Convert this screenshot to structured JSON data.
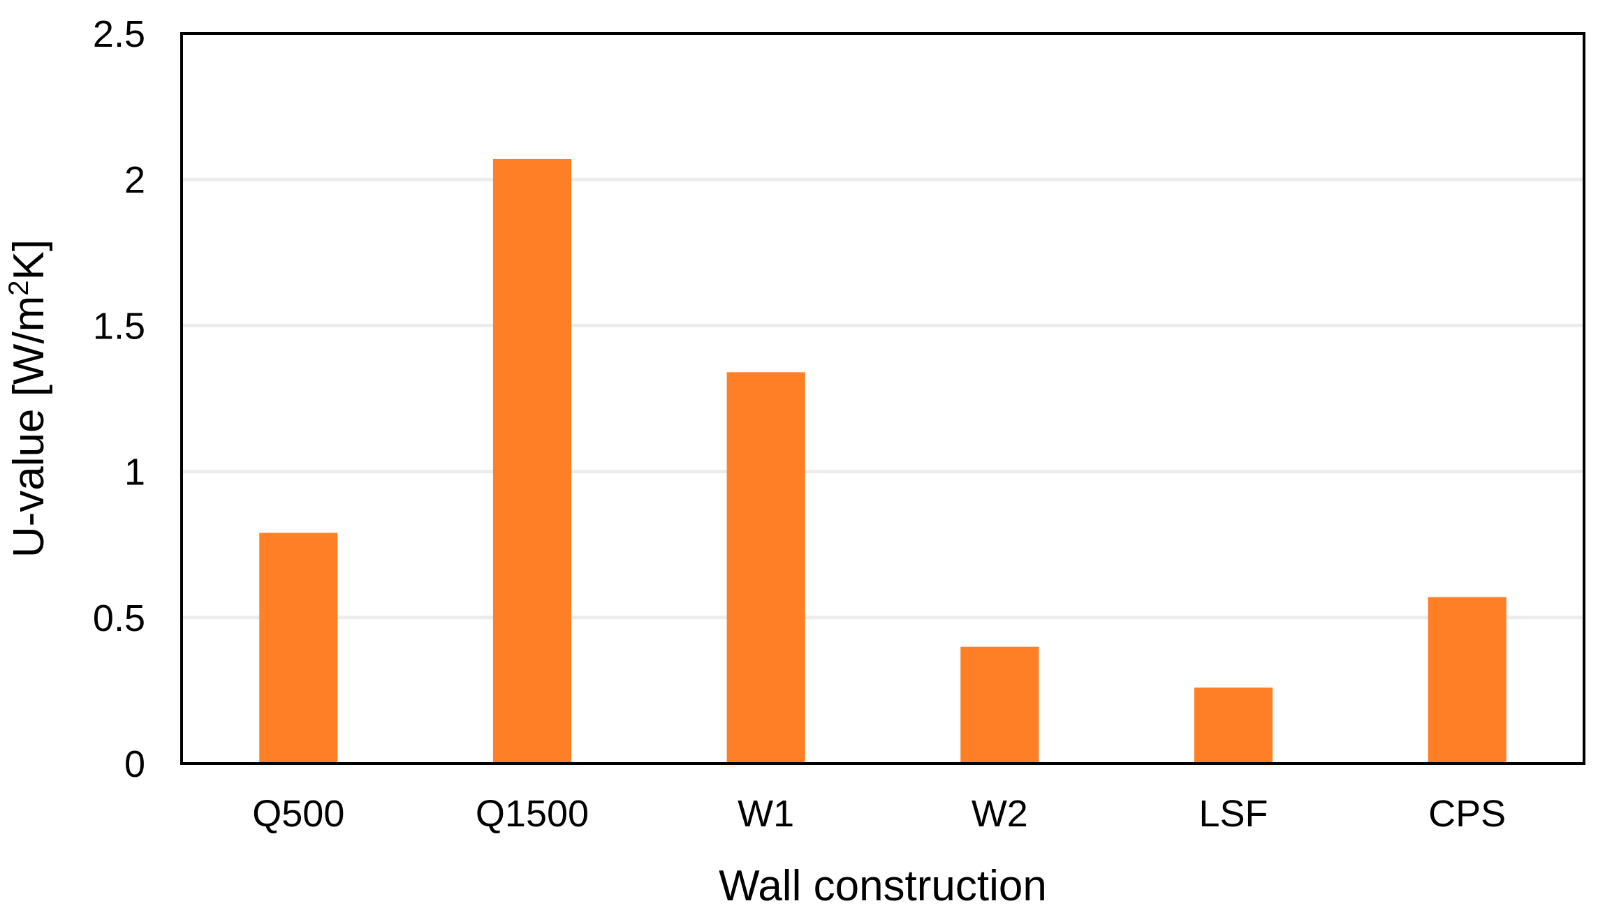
{
  "chart_data": {
    "type": "bar",
    "title": "",
    "xlabel": "Wall construction",
    "ylabel_parts": {
      "before": "U-value [W/m",
      "superscript": "2",
      "after": "K]"
    },
    "categories": [
      "Q500",
      "Q1500",
      "W1",
      "W2",
      "LSF",
      "CPS"
    ],
    "values": [
      0.79,
      2.07,
      1.34,
      0.4,
      0.26,
      0.57
    ],
    "ylim": [
      0,
      2.5
    ],
    "yticks": [
      0,
      0.5,
      1,
      1.5,
      2,
      2.5
    ],
    "ytick_labels": [
      "0",
      "0.5",
      "1",
      "1.5",
      "2",
      "2.5"
    ],
    "grid": true,
    "legend": "none",
    "colors": {
      "bar": "#ff7f27",
      "grid": "#ececec",
      "frame": "#000000"
    }
  }
}
